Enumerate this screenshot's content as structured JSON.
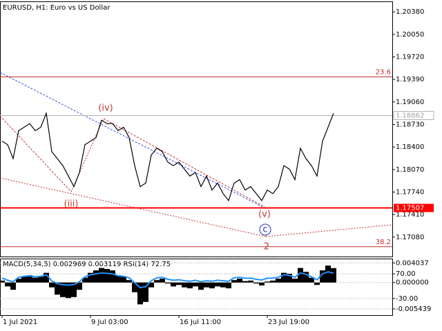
{
  "chart_data": {
    "type": "line",
    "title": "EURUSD, H1:  Euro vs US Dollar",
    "xlim": [
      -0.375,
      70.625
    ],
    "xticks": [
      {
        "value": 0,
        "label": "1 Jul 2021"
      },
      {
        "value": 16,
        "label": "9 Jul 03:00"
      },
      {
        "value": 32,
        "label": "16 Jul 11:00"
      },
      {
        "value": 48,
        "label": "23 Jul 19:00"
      }
    ],
    "ylim": [
      1.16795,
      1.20534
    ],
    "yticks": [
      {
        "value": 1.2038,
        "label": "1.20380"
      },
      {
        "value": 1.2005,
        "label": "1.20050"
      },
      {
        "value": 1.1972,
        "label": "1.19720"
      },
      {
        "value": 1.1939,
        "label": "1.19390"
      },
      {
        "value": 1.1906,
        "label": "1.19060"
      },
      {
        "value": 1.1873,
        "label": "1.18730"
      },
      {
        "value": 1.184,
        "label": "1.18400"
      },
      {
        "value": 1.1807,
        "label": "1.18070"
      },
      {
        "value": 1.1774,
        "label": "1.17740"
      },
      {
        "value": 1.1741,
        "label": "1.17410"
      },
      {
        "value": 1.1708,
        "label": "1.17080"
      }
    ],
    "series": [
      {
        "name": "EURUSD",
        "color": "#000000",
        "values": [
          1.18485,
          1.18434,
          1.1823,
          1.18639,
          1.1869,
          1.18742,
          1.18639,
          1.1869,
          1.18895,
          1.18332,
          1.1823,
          1.18127,
          1.17974,
          1.1782,
          1.18025,
          1.18434,
          1.18485,
          1.18537,
          1.18793,
          1.18742,
          1.18742,
          1.18639,
          1.1869,
          1.18537,
          1.18127,
          1.1782,
          1.17871,
          1.18281,
          1.18383,
          1.18332,
          1.18178,
          1.18127,
          1.18178,
          1.18076,
          1.17974,
          1.18025,
          1.1782,
          1.17974,
          1.17769,
          1.17871,
          1.17718,
          1.17615,
          1.17871,
          1.17922,
          1.17769,
          1.1782,
          1.17718,
          1.17615,
          1.17769,
          1.17718,
          1.1782,
          1.18127,
          1.18076,
          1.17922,
          1.18383,
          1.1823,
          1.18127,
          1.17974,
          1.18485,
          1.1869,
          1.18895
        ]
      }
    ],
    "levels": [
      {
        "value": 1.19428,
        "label": "23.6",
        "color": "#c03030"
      },
      {
        "value": 1.16939,
        "label": "38.2",
        "color": "#c03030"
      }
    ],
    "support": {
      "value": 1.17507,
      "color": "#ff0000"
    },
    "current_price": {
      "value": 1.18862,
      "color": "#b0b0b0"
    },
    "waves": [
      "(iv)",
      "(iii)",
      "(v)",
      "c",
      "2"
    ],
    "indicator": {
      "label": "MACD(5,34,5) 0.002969 0.003119 RSI(14) 72.75",
      "ylim": [
        -0.006728,
        0.004934
      ],
      "yticks": [
        0.004037,
        {
          "value": 0,
          "label": "0.000000"
        },
        -0.005439
      ],
      "y2lim": [
        -97.6,
        131.8
      ],
      "y2ticks": [
        {
          "value": 70,
          "label": "70.00"
        },
        {
          "value": -30,
          "label": "-30.00"
        }
      ],
      "series": [
        {
          "name": "MACD",
          "color": "#000000",
          "values": [
            0.0004,
            -0.0008,
            -0.0015,
            0.0008,
            0.0012,
            0.0015,
            0.001,
            0.0012,
            0.002,
            -0.001,
            -0.0025,
            -0.003,
            -0.0032,
            -0.003,
            -0.0015,
            0.001,
            0.002,
            0.0025,
            0.003,
            0.0028,
            0.0025,
            0.0015,
            0.0012,
            0.0005,
            -0.002,
            -0.0045,
            -0.004,
            -0.001,
            0.0005,
            0.0008,
            -0.0002,
            -0.0008,
            -0.0005,
            -0.001,
            -0.0012,
            -0.0008,
            -0.0015,
            -0.001,
            -0.0012,
            -0.0008,
            -0.001,
            -0.0012,
            0.0005,
            0.0008,
            0.0003,
            0.0004,
            -0.0002,
            -0.0006,
            0.0002,
            0.0004,
            0.0008,
            0.002,
            0.0018,
            0.0008,
            0.003,
            0.0022,
            0.001,
            -0.0005,
            0.0025,
            0.0035,
            0.002969
          ]
        },
        {
          "name": "RSI(14)",
          "color": "#1e90ff",
          "axis": "y2",
          "values": [
            53,
            44,
            38,
            56,
            60,
            62,
            58,
            60,
            66,
            42,
            30,
            26,
            24,
            26,
            38,
            58,
            66,
            70,
            74,
            72,
            70,
            62,
            60,
            54,
            34,
            14,
            18,
            42,
            54,
            56,
            48,
            44,
            46,
            42,
            40,
            44,
            38,
            42,
            40,
            44,
            42,
            40,
            54,
            56,
            52,
            53,
            48,
            45,
            52,
            53,
            56,
            66,
            64,
            56,
            74,
            68,
            58,
            46,
            70,
            78,
            72.75
          ]
        }
      ]
    }
  }
}
